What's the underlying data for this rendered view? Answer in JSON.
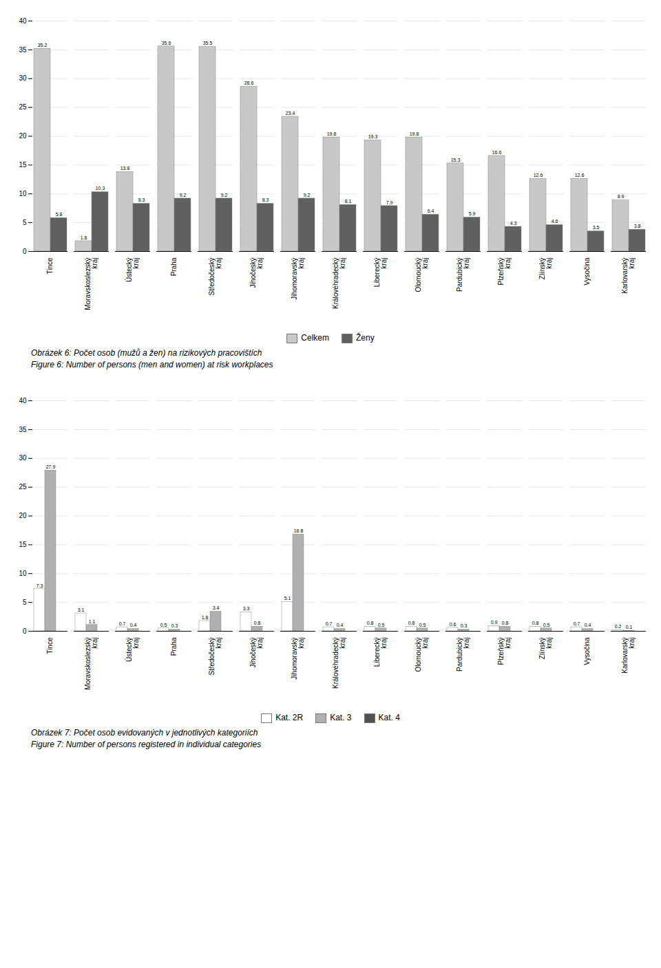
{
  "chart_data": [
    {
      "type": "bar",
      "title": "Obrázek 6: Počet osob (mužů a žen) na rizikových pracovištích",
      "subtitle": "Figure 6: Number of persons (men and women) at risk workplaces",
      "categories": [
        "Tince",
        "Moravskoslezský\nkraj",
        "Ústecký\nkraj",
        "Praha",
        "Středočeský\nkraj",
        "Jihočeský\nkraj",
        "Jihomoravský\nkraj",
        "Královéhradecký\nkraj",
        "Liberecký\nkraj",
        "Olomoucký\nkraj",
        "Pardubický\nkraj",
        "Plzeňský\nkraj",
        "Zlínský\nkraj",
        "Vysočina",
        "Karlovarský\nkraj"
      ],
      "series": [
        {
          "name": "Celkem",
          "color": "#c8c8c8",
          "data_labels": true,
          "values": [
            35.2,
            1.8,
            13.8,
            35.6,
            35.5,
            28.6,
            23.4,
            19.8,
            19.3,
            19.8,
            15.3,
            16.6,
            12.6,
            12.6,
            8.9
          ]
        },
        {
          "name": "Ženy",
          "color": "#606060",
          "data_labels": true,
          "values": [
            5.8,
            10.3,
            8.3,
            9.2,
            9.2,
            8.3,
            9.2,
            8.1,
            7.9,
            6.4,
            5.9,
            4.3,
            4.6,
            3.5,
            3.8
          ]
        }
      ],
      "ylim": [
        0,
        40
      ],
      "yticks": [
        0,
        5,
        10,
        15,
        20,
        25,
        30,
        35,
        40
      ],
      "grid": true,
      "legend": "bottom"
    },
    {
      "type": "bar",
      "title": "Obrázek 7: Počet osob evidovaných v jednotlivých kategoriích",
      "subtitle": "Figure 7: Number of persons registered in individual categories",
      "categories": [
        "Tince",
        "Moravskoslezský\nkraj",
        "Ústecký\nkraj",
        "Praha",
        "Středočeský\nkraj",
        "Jihočeský\nkraj",
        "Jihomoravský\nkraj",
        "Královéhradecký\nkraj",
        "Liberecký\nkraj",
        "Olomoucký\nkraj",
        "Pardubický\nkraj",
        "Plzeňský\nkraj",
        "Zlínský\nkraj",
        "Vysočina",
        "Karlovarský\nkraj"
      ],
      "series": [
        {
          "name": "Kat. 2R",
          "color": "#ffffff",
          "data_labels": true,
          "values": [
            7.3,
            3.1,
            0.7,
            0.5,
            1.8,
            3.3,
            5.1,
            0.7,
            0.8,
            0.8,
            0.6,
            0.9,
            0.8,
            0.7,
            0.2
          ]
        },
        {
          "name": "Kat. 3",
          "color": "#b0b0b0",
          "data_labels": true,
          "values": [
            27.9,
            1.1,
            0.4,
            0.3,
            3.4,
            0.8,
            16.8,
            0.4,
            0.5,
            0.5,
            0.3,
            0.8,
            0.5,
            0.4,
            0.1
          ]
        },
        {
          "name": "Kat. 4",
          "color": "#505050",
          "data_labels": false,
          "values": [
            0.0,
            0.0,
            0.0,
            0.0,
            0.0,
            0.0,
            0.0,
            0.0,
            0.0,
            0.0,
            0.0,
            0.0,
            0.0,
            0.0,
            0.0
          ]
        }
      ],
      "ylim": [
        0,
        40
      ],
      "yticks": [
        0,
        5,
        10,
        15,
        20,
        25,
        30,
        35,
        40
      ],
      "grid": true,
      "legend": "bottom"
    }
  ]
}
